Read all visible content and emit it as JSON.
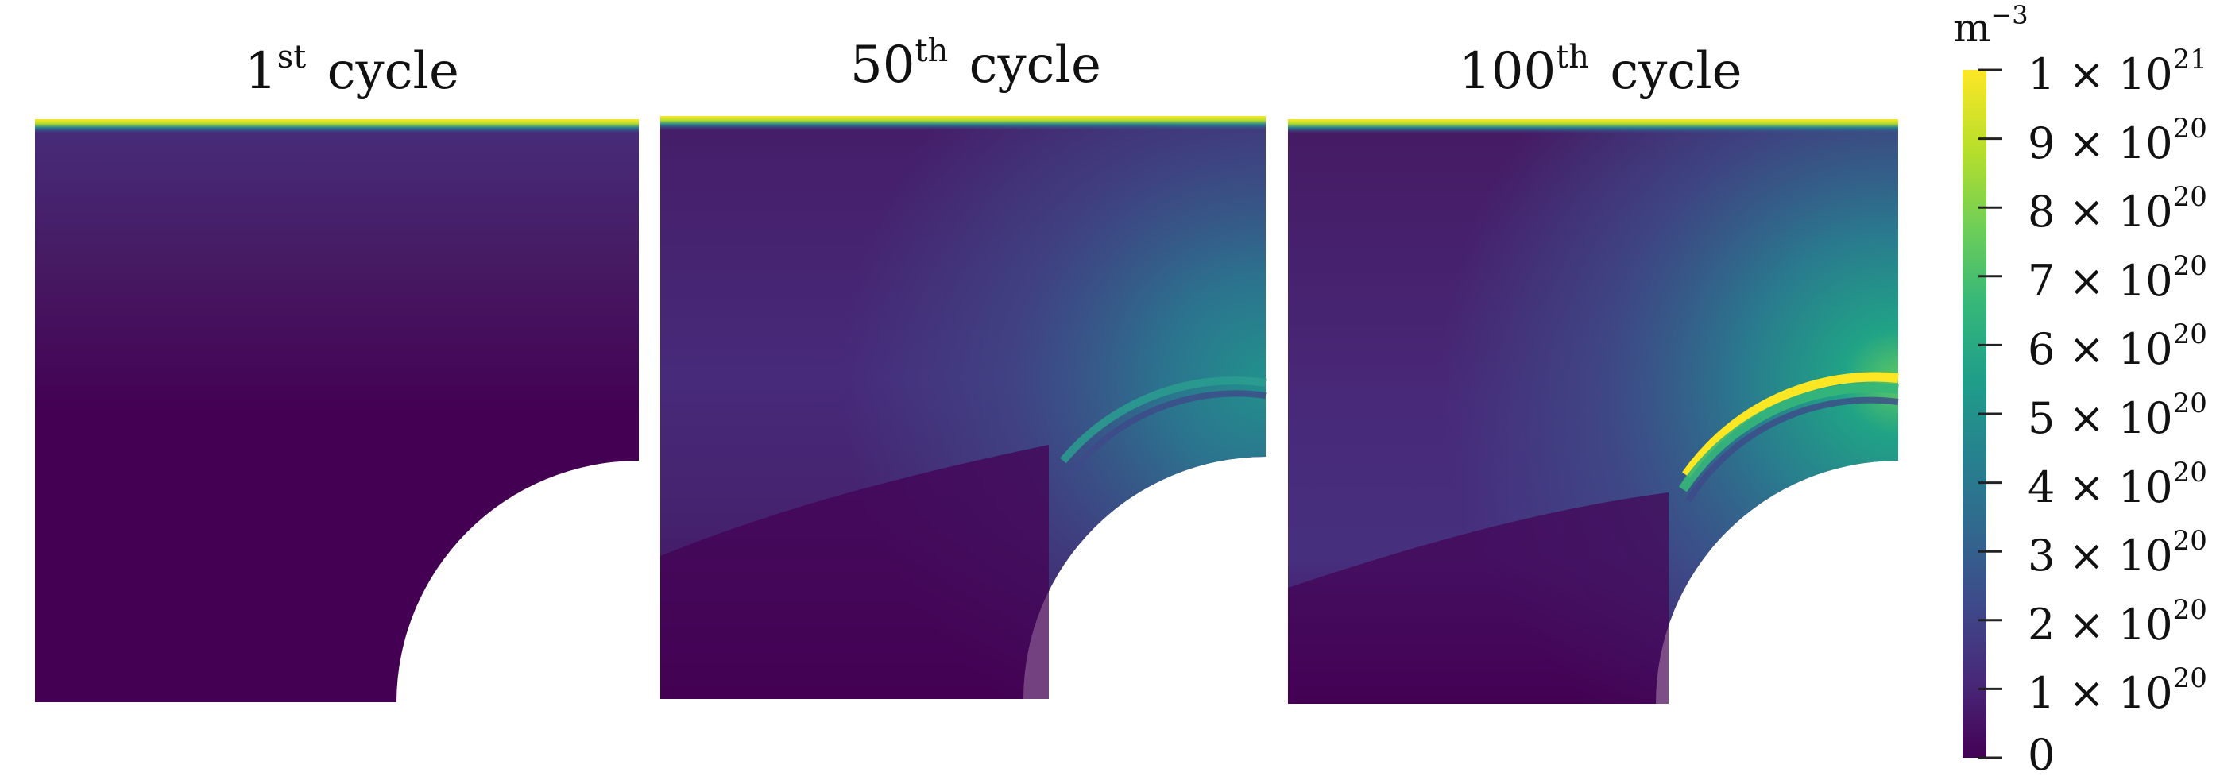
{
  "panels": [
    {
      "title": "1",
      "title_sup": "st",
      "title_rest": " cycle"
    },
    {
      "title": "50",
      "title_sup": "th",
      "title_rest": " cycle"
    },
    {
      "title": "100",
      "title_sup": "th",
      "title_rest": "  cycle"
    }
  ],
  "colorbar": {
    "unit": "m",
    "unit_sup": "−3",
    "range": [
      0,
      1e+21
    ],
    "colormap": "viridis",
    "ticks": [
      {
        "value": 1e+21,
        "label": "1 × 10",
        "sup": "21"
      },
      {
        "value": 9e+20,
        "label": "9 × 10",
        "sup": "20"
      },
      {
        "value": 8e+20,
        "label": "8 × 10",
        "sup": "20"
      },
      {
        "value": 7e+20,
        "label": "7 × 10",
        "sup": "20"
      },
      {
        "value": 6e+20,
        "label": "6 × 10",
        "sup": "20"
      },
      {
        "value": 5e+20,
        "label": "5 × 10",
        "sup": "20"
      },
      {
        "value": 4e+20,
        "label": "4 × 10",
        "sup": "20"
      },
      {
        "value": 3e+20,
        "label": "3 × 10",
        "sup": "20"
      },
      {
        "value": 2e+20,
        "label": "2 × 10",
        "sup": "20"
      },
      {
        "value": 1e+20,
        "label": "1 × 10",
        "sup": "20"
      },
      {
        "value": 0,
        "label": "0",
        "sup": ""
      }
    ]
  },
  "colors": {
    "viridis": [
      "#440154",
      "#482878",
      "#3e4989",
      "#31688e",
      "#26828e",
      "#1f9e89",
      "#35b779",
      "#6ece58",
      "#b5de2b",
      "#fde725"
    ]
  }
}
